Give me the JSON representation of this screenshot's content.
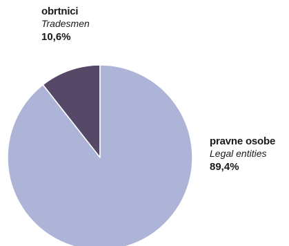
{
  "chart_data": {
    "type": "pie",
    "title": "",
    "start_angle_deg": 0,
    "direction": "counterclockwise",
    "slices": [
      {
        "label": "obrtnici",
        "label_en": "Tradesmen",
        "value": 10.6,
        "display": "10,6%",
        "color": "#554967"
      },
      {
        "label": "pravne osobe",
        "label_en": "Legal entities",
        "value": 89.4,
        "display": "89,4%",
        "color": "#adb4d8"
      }
    ],
    "slice_edge_color": "#ffffff"
  }
}
